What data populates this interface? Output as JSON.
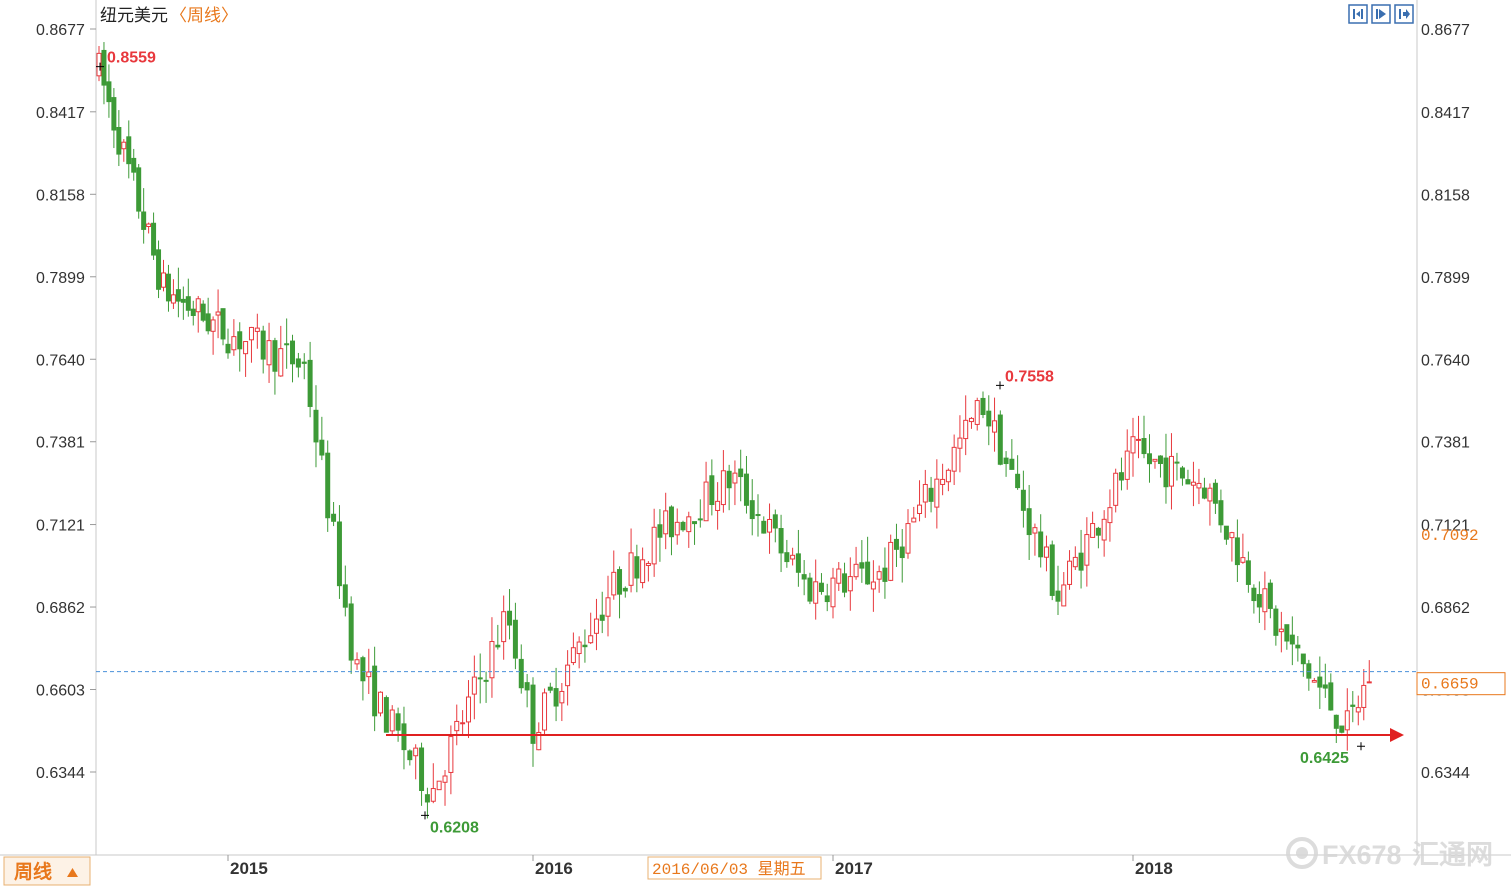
{
  "chart_data": {
    "type": "candlestick",
    "title": "纽元美元",
    "subtitle": "〈周线〉",
    "period_button": "周线",
    "y_ticks": [
      "0.8677",
      "0.8417",
      "0.8158",
      "0.7899",
      "0.7640",
      "0.7381",
      "0.7121",
      "0.6862",
      "0.6603",
      "0.6344"
    ],
    "x_labels": [
      "2015",
      "2016",
      "2017",
      "2018"
    ],
    "ylim": [
      0.615,
      0.869
    ],
    "grid": false,
    "current_price": "0.6659",
    "current_price_value": 0.6659,
    "cursor_price": "0.7092",
    "cursor_date": "2016/06/03 星期五",
    "annotations": [
      {
        "label": "0.8559",
        "value": 0.8559,
        "type": "high"
      },
      {
        "label": "0.6208",
        "value": 0.6208,
        "type": "low"
      },
      {
        "label": "0.7558",
        "value": 0.7558,
        "type": "high"
      },
      {
        "label": "0.6425",
        "value": 0.6425,
        "type": "low"
      }
    ],
    "support_level": 0.646,
    "key_closes": [
      {
        "date": "2014-07",
        "close": 0.855
      },
      {
        "date": "2014-10",
        "close": 0.786
      },
      {
        "date": "2015-01",
        "close": 0.772
      },
      {
        "date": "2015-04",
        "close": 0.762
      },
      {
        "date": "2015-06",
        "close": 0.668
      },
      {
        "date": "2015-09",
        "close": 0.628
      },
      {
        "date": "2015-12",
        "close": 0.684
      },
      {
        "date": "2016-01",
        "close": 0.648
      },
      {
        "date": "2016-04",
        "close": 0.69
      },
      {
        "date": "2016-06",
        "close": 0.709
      },
      {
        "date": "2016-09",
        "close": 0.727
      },
      {
        "date": "2016-12",
        "close": 0.692
      },
      {
        "date": "2017-03",
        "close": 0.697
      },
      {
        "date": "2017-07",
        "close": 0.75
      },
      {
        "date": "2017-10",
        "close": 0.69
      },
      {
        "date": "2018-01",
        "close": 0.734
      },
      {
        "date": "2018-04",
        "close": 0.725
      },
      {
        "date": "2018-07",
        "close": 0.68
      },
      {
        "date": "2018-10",
        "close": 0.648
      },
      {
        "date": "2018-11",
        "close": 0.666
      }
    ],
    "up_color": "#e8383d",
    "down_color": "#3d9a37"
  },
  "controls": {
    "icons": [
      "zoom-in-icon",
      "zoom-out-icon",
      "scroll-right-icon"
    ]
  },
  "watermark": {
    "text": "FX678",
    "subtext": "汇通网"
  }
}
